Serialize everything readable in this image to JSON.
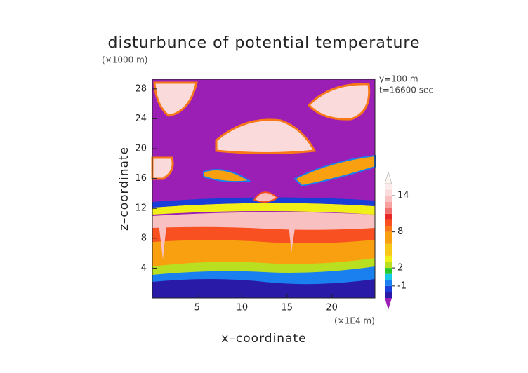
{
  "chart_data": {
    "type": "heatmap",
    "title": "disturbunce of potential temperature",
    "y_unit": "(×1000 m)",
    "x_unit": "(×1E4 m)",
    "annotations": [
      "y=100 m",
      "t=16600 sec"
    ],
    "xlabel": "x–coordinate",
    "ylabel": "z–coordinate",
    "xlim": [
      0,
      24.8
    ],
    "xticks": [
      5,
      10,
      15,
      20
    ],
    "ylim": [
      0,
      29.3
    ],
    "yticks": [
      4,
      8,
      12,
      16,
      20,
      24,
      28
    ],
    "colorbar": {
      "levels": [
        -3,
        -2,
        -1,
        0,
        1,
        2,
        3,
        4,
        6,
        8,
        9,
        10,
        11,
        12,
        13,
        14,
        15,
        16
      ],
      "colors": [
        "#9b1fb4",
        "#2a1aa8",
        "#1a3ed8",
        "#1a80f0",
        "#18c8e8",
        "#28c828",
        "#b8e020",
        "#f0f018",
        "#f8c818",
        "#f8a010",
        "#f87818",
        "#f85020",
        "#e82828",
        "#f07070",
        "#f8a0a0",
        "#f8c0c0",
        "#fadada",
        "#fcecec",
        "#fdf6f0"
      ],
      "ticks": [
        -1,
        2,
        8,
        14
      ]
    }
  }
}
